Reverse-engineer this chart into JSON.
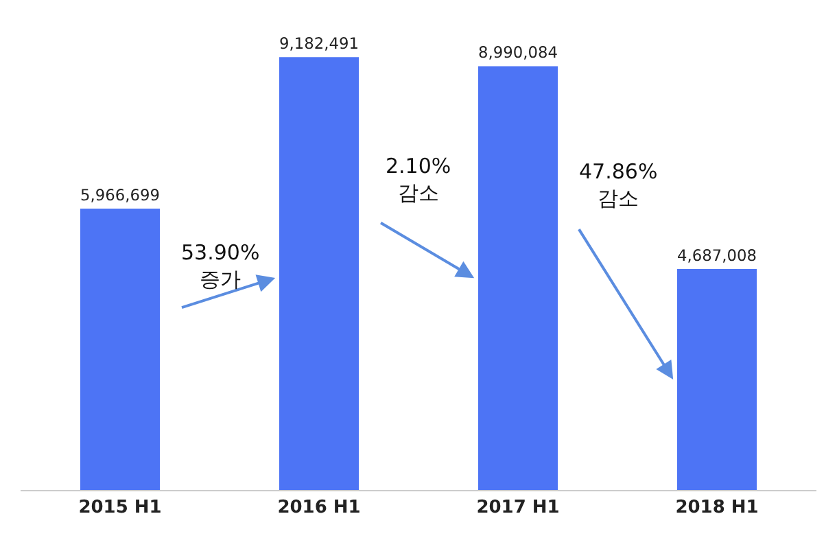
{
  "chart_data": {
    "type": "bar",
    "categories": [
      "2015 H1",
      "2016 H1",
      "2017 H1",
      "2018 H1"
    ],
    "values": [
      5966699,
      9182491,
      8990084,
      4687008
    ],
    "color": "#4d74f5",
    "value_labels": [
      "5,966,699",
      "9,182,491",
      "8,990,084",
      "4,687,008"
    ],
    "annotations": [
      "53.90%\n증가",
      "2.10%\n감소",
      "47.86%\n감소"
    ]
  }
}
